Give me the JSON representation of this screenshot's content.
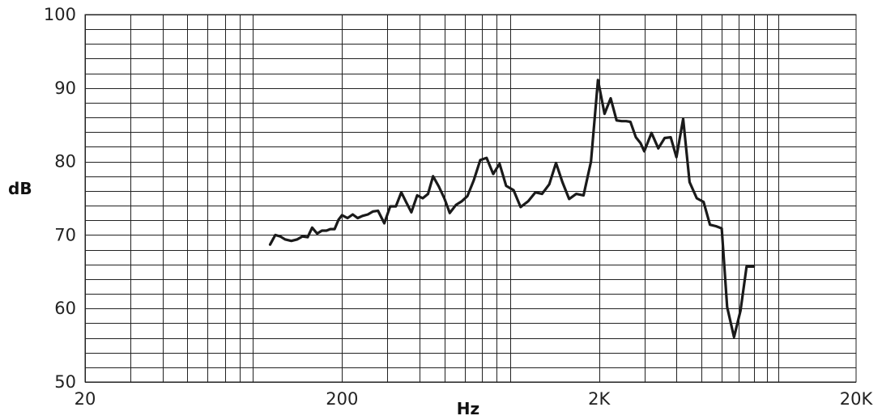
{
  "chart_data": {
    "type": "line",
    "xlabel": "Hz",
    "ylabel": "dB",
    "xscale": "log",
    "xlim": [
      20,
      20000
    ],
    "ylim": [
      50,
      100
    ],
    "grid": true,
    "x_ticks": [
      {
        "value": 20,
        "label": "20"
      },
      {
        "value": 200,
        "label": "200"
      },
      {
        "value": 2000,
        "label": "2K"
      },
      {
        "value": 20000,
        "label": "20K"
      }
    ],
    "y_ticks": [
      {
        "value": 50,
        "label": "50"
      },
      {
        "value": 60,
        "label": "60"
      },
      {
        "value": 70,
        "label": "70"
      },
      {
        "value": 80,
        "label": "80"
      },
      {
        "value": 90,
        "label": "90"
      },
      {
        "value": 100,
        "label": "100"
      }
    ],
    "series": [
      {
        "color": "#1a1a1a",
        "x": [
          105,
          110,
          115,
          120,
          127,
          134,
          140,
          147,
          153,
          160,
          167,
          174,
          180,
          187,
          194,
          200,
          210,
          220,
          230,
          240,
          252,
          264,
          276,
          292,
          308,
          324,
          340,
          356,
          372,
          392,
          412,
          432,
          452,
          476,
          500,
          525,
          555,
          585,
          615,
          650,
          690,
          730,
          775,
          820,
          870,
          930,
          990,
          1060,
          1130,
          1200,
          1280,
          1360,
          1440,
          1530,
          1630,
          1740,
          1860,
          1980,
          2100,
          2220,
          2340,
          2450,
          2550,
          2650,
          2780,
          2900,
          3000,
          3200,
          3400,
          3600,
          3800,
          4000,
          4250,
          4500,
          4800,
          5100,
          5400,
          5700,
          6000,
          6300,
          6700,
          7100,
          7500,
          8000,
          8400,
          8800,
          9200,
          9700,
          10300,
          10900,
          11500
        ],
        "y": [
          68.7,
          70.0,
          69.8,
          69.4,
          69.2,
          69.4,
          69.8,
          69.7,
          71.0,
          70.2,
          70.6,
          70.6,
          70.8,
          70.8,
          72.1,
          72.7,
          72.3,
          72.8,
          72.3,
          72.6,
          72.8,
          73.2,
          73.3,
          71.6,
          73.9,
          73.9,
          75.8,
          74.4,
          73.1,
          75.4,
          75.0,
          75.6,
          78.0,
          76.6,
          75.0,
          73.0,
          74.1,
          74.6,
          75.3,
          77.4,
          80.2,
          80.5,
          78.3,
          79.7,
          76.7,
          76.1,
          73.8,
          74.6,
          75.8,
          75.6,
          76.9,
          79.8,
          77.2,
          74.9,
          75.6,
          75.4,
          80.0,
          91.1,
          86.5,
          88.6,
          85.6,
          85.5,
          85.5,
          85.4,
          83.3,
          82.5,
          81.4,
          83.9,
          81.8,
          83.2,
          83.3,
          80.6,
          85.8,
          77.2,
          75.0,
          74.5,
          71.4,
          71.2,
          70.9,
          60.2,
          56.1,
          59.7,
          65.7,
          65.7,
          65.7,
          65.7,
          65.7,
          65.7,
          65.7,
          65.7,
          65.7
        ]
      }
    ]
  }
}
